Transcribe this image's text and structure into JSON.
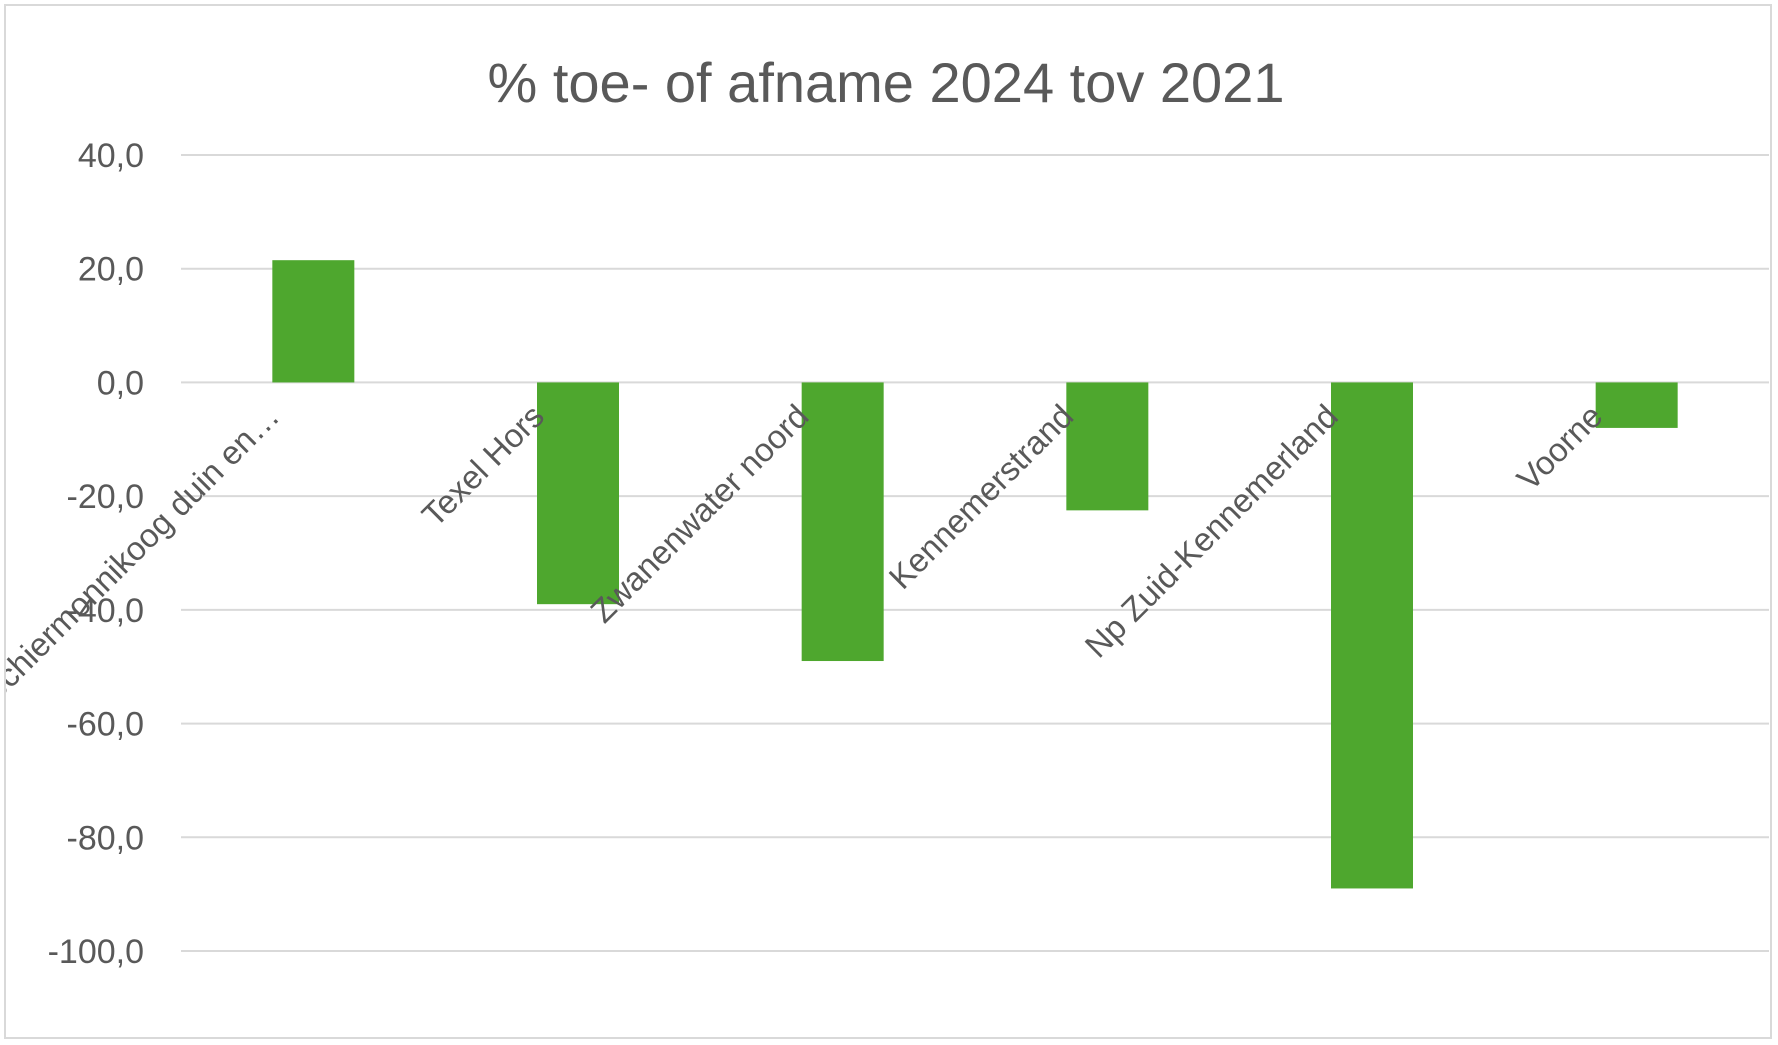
{
  "chart_data": {
    "type": "bar",
    "title": "% toe- of afname 2024 tov 2021",
    "categories": [
      "Schiermonnikoog duin en…",
      "Texel Hors",
      "Zwanenwater noord",
      "Kennemerstrand",
      "Np Zuid-Kennemerland",
      "Voorne"
    ],
    "series": [
      {
        "values": [
          21.5,
          -39.0,
          -49.0,
          -22.5,
          -89.0,
          -8.0
        ]
      }
    ],
    "ylim": [
      -100,
      40
    ],
    "yticks": [
      "40,0",
      "20,0",
      "0,0",
      "-20,0",
      "-40,0",
      "-60,0",
      "-80,0",
      "-100,0"
    ],
    "ytick_values": [
      40,
      20,
      0,
      -20,
      -40,
      -60,
      -80,
      -100
    ],
    "bar_color": "#4ea72e",
    "grid": true,
    "legend": "none"
  }
}
